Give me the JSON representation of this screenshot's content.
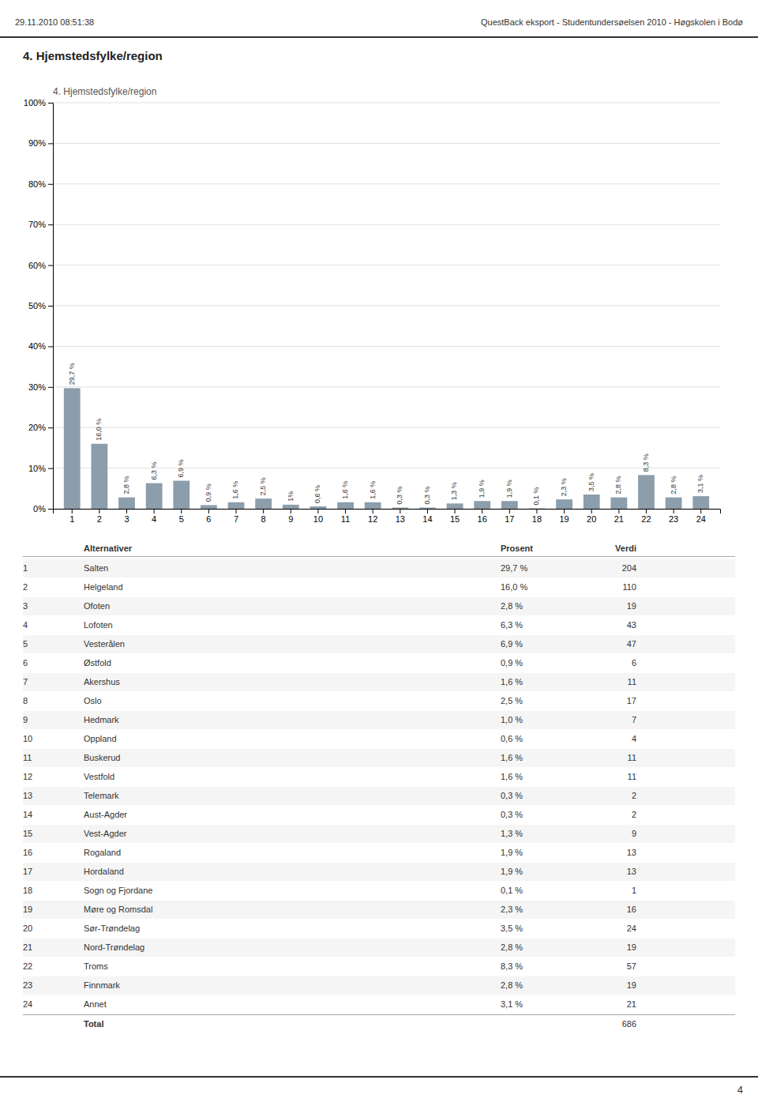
{
  "header_left": "29.11.2010 08:51:38",
  "header_right": "QuestBack eksport - Studentundersøelsen 2010 - Høgskolen i Bodø",
  "page_number": "4",
  "section_title": "4. Hjemstedsfylke/region",
  "chart_data": {
    "type": "bar",
    "title": "4. Hjemstedsfylke/region",
    "categories": [
      1,
      2,
      3,
      4,
      5,
      6,
      7,
      8,
      9,
      10,
      11,
      12,
      13,
      14,
      15,
      16,
      17,
      18,
      19,
      20,
      21,
      22,
      23,
      24
    ],
    "values": [
      29.7,
      16.0,
      2.8,
      6.3,
      6.9,
      0.9,
      1.6,
      2.5,
      1.0,
      0.6,
      1.6,
      1.6,
      0.3,
      0.3,
      1.3,
      1.9,
      1.9,
      0.1,
      2.3,
      3.5,
      2.8,
      8.3,
      2.8,
      3.1
    ],
    "value_labels": [
      "29,7 %",
      "16,0 %",
      "2,8 %",
      "6,3 %",
      "6,9 %",
      "0,9 %",
      "1,6 %",
      "2,5 %",
      "1%",
      "0,6 %",
      "1,6 %",
      "1,6 %",
      "0,3 %",
      "0,3 %",
      "1,3 %",
      "1,9 %",
      "1,9 %",
      "0,1 %",
      "2,3 %",
      "3,5 %",
      "2,8 %",
      "8,3 %",
      "2,8 %",
      "3,1 %"
    ],
    "color": "#8c9dab",
    "ylim": [
      0,
      100
    ],
    "yticks": [
      {
        "value": 0,
        "label": "0%"
      },
      {
        "value": 10,
        "label": "10%"
      },
      {
        "value": 20,
        "label": "20%"
      },
      {
        "value": 30,
        "label": "30%"
      },
      {
        "value": 40,
        "label": "40%"
      },
      {
        "value": 50,
        "label": "50%"
      },
      {
        "value": 60,
        "label": "60%"
      },
      {
        "value": 70,
        "label": "70%"
      },
      {
        "value": 80,
        "label": "80%"
      },
      {
        "value": 90,
        "label": "90%"
      },
      {
        "value": 100,
        "label": "100%"
      }
    ],
    "grid": true,
    "data_labels": true
  },
  "table": {
    "columns": [
      "Alternativer",
      "Prosent",
      "Verdi"
    ],
    "rows": [
      {
        "num": 1,
        "name": "Salten",
        "pct": "29,7 %",
        "val": 204
      },
      {
        "num": 2,
        "name": "Helgeland",
        "pct": "16,0 %",
        "val": 110
      },
      {
        "num": 3,
        "name": "Ofoten",
        "pct": "2,8 %",
        "val": 19
      },
      {
        "num": 4,
        "name": "Lofoten",
        "pct": "6,3 %",
        "val": 43
      },
      {
        "num": 5,
        "name": "Vesterålen",
        "pct": "6,9 %",
        "val": 47
      },
      {
        "num": 6,
        "name": "Østfold",
        "pct": "0,9 %",
        "val": 6
      },
      {
        "num": 7,
        "name": "Akershus",
        "pct": "1,6 %",
        "val": 11
      },
      {
        "num": 8,
        "name": "Oslo",
        "pct": "2,5 %",
        "val": 17
      },
      {
        "num": 9,
        "name": "Hedmark",
        "pct": "1,0 %",
        "val": 7
      },
      {
        "num": 10,
        "name": "Oppland",
        "pct": "0,6 %",
        "val": 4
      },
      {
        "num": 11,
        "name": "Buskerud",
        "pct": "1,6 %",
        "val": 11
      },
      {
        "num": 12,
        "name": "Vestfold",
        "pct": "1,6 %",
        "val": 11
      },
      {
        "num": 13,
        "name": "Telemark",
        "pct": "0,3 %",
        "val": 2
      },
      {
        "num": 14,
        "name": "Aust-Agder",
        "pct": "0,3 %",
        "val": 2
      },
      {
        "num": 15,
        "name": "Vest-Agder",
        "pct": "1,3 %",
        "val": 9
      },
      {
        "num": 16,
        "name": "Rogaland",
        "pct": "1,9 %",
        "val": 13
      },
      {
        "num": 17,
        "name": "Hordaland",
        "pct": "1,9 %",
        "val": 13
      },
      {
        "num": 18,
        "name": "Sogn og Fjordane",
        "pct": "0,1 %",
        "val": 1
      },
      {
        "num": 19,
        "name": "Møre og Romsdal",
        "pct": "2,3 %",
        "val": 16
      },
      {
        "num": 20,
        "name": "Sør-Trøndelag",
        "pct": "3,5 %",
        "val": 24
      },
      {
        "num": 21,
        "name": "Nord-Trøndelag",
        "pct": "2,8 %",
        "val": 19
      },
      {
        "num": 22,
        "name": "Troms",
        "pct": "8,3 %",
        "val": 57
      },
      {
        "num": 23,
        "name": "Finnmark",
        "pct": "2,8 %",
        "val": 19
      },
      {
        "num": 24,
        "name": "Annet",
        "pct": "3,1 %",
        "val": 21
      }
    ],
    "total_label": "Total",
    "total": 686
  }
}
